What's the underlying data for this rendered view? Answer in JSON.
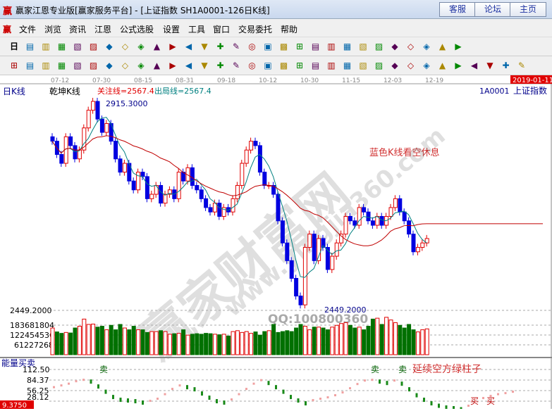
{
  "window": {
    "title": "赢家江恩专业版[赢家服务平台] - [上证指数  SH1A0001-126日K线]",
    "buttons": [
      "客服",
      "论坛",
      "主页"
    ]
  },
  "menu": [
    "文件",
    "浏览",
    "资讯",
    "江恩",
    "公式选股",
    "设置",
    "工具",
    "窗口",
    "交易委托",
    "帮助"
  ],
  "toolbar": {
    "period": "日",
    "row1_icons": [
      "period-dropdown",
      "multi-chart",
      "f10-info",
      "chart-type-3",
      "chart-type-9",
      "candle-dropdown",
      "gann",
      "color-k",
      "first",
      "last",
      "prev",
      "next",
      "left-arrow",
      "right-arrow",
      "zoom-in",
      "zoom-out",
      "expand",
      "shrink",
      "hand",
      "crosshair",
      "draw",
      "mark",
      "formula",
      "calendar",
      "calculator",
      "notes",
      "save",
      "network",
      "broker"
    ],
    "row2_icons": [
      "pen",
      "grid",
      "gold-grid-1",
      "gold-grid-2",
      "grid-f",
      "spiral",
      "pen-2",
      "circle",
      "grid-2",
      "grid-n2",
      "angle",
      "cross-circle",
      "star",
      "square-x",
      "lines",
      "gann-box",
      "box",
      "box-2",
      "arrow-h",
      "h-lines",
      "fan",
      "square-fan",
      "fan-2",
      "angle-2",
      "wave",
      "grid-red",
      "grid-blue",
      "lines-diag",
      "bars",
      "percent-red",
      "percent",
      "percent-lines",
      "coin"
    ],
    "percent": "%"
  },
  "chart": {
    "period_label": "日K线",
    "indicator_name": "乾坤K线",
    "focus_line": "关注线=2567.4",
    "exit_line": "出局线=2567.4",
    "symbol": "1A0001",
    "symbol_name": "上证指数",
    "current_date": "2019-01-11",
    "dates": [
      "07-12",
      "07-30",
      "08-15",
      "08-31",
      "09-18",
      "10-12",
      "10-30",
      "11-15",
      "12-03",
      "12-19"
    ],
    "high_label": "2915.3000",
    "low_label": "2449.2000",
    "annotation": "蓝色K线看空休息",
    "watermark": "赢家财富网",
    "watermark_url": "www.yingjia360.com",
    "qq": "QQ:100800360",
    "colors": {
      "up": "#e00000",
      "down": "#0000e0",
      "ma_short": "#008080",
      "ma_long": "#c00000",
      "vol_down": "#007000"
    }
  },
  "volume": {
    "ticks": [
      "2449.2000",
      "183681804",
      "122454536",
      "61227268"
    ]
  },
  "indicator": {
    "name": "能量买卖",
    "ticks": [
      "112.50",
      "84.37",
      "56.25",
      "28.12"
    ],
    "bottom_value": "9.3750",
    "sell_labels": [
      "卖",
      "卖",
      "卖"
    ],
    "buy_labels": [
      "买",
      "买"
    ],
    "annotation": "延续空方绿柱子"
  },
  "chart_data": {
    "type": "candlestick",
    "ylim": [
      2449.2,
      2915.3
    ],
    "close": [
      2830,
      2800,
      2780,
      2840,
      2820,
      2790,
      2810,
      2860,
      2900,
      2920,
      2880,
      2850,
      2870,
      2830,
      2790,
      2760,
      2780,
      2740,
      2720,
      2760,
      2750,
      2700,
      2710,
      2730,
      2690,
      2710,
      2720,
      2700,
      2760,
      2740,
      2770,
      2730,
      2720,
      2700,
      2680,
      2670,
      2690,
      2660,
      2680,
      2670,
      2700,
      2730,
      2780,
      2810,
      2830,
      2820,
      2760,
      2730,
      2730,
      2710,
      2650,
      2600,
      2560,
      2520,
      2480,
      2460,
      2590,
      2620,
      2560,
      2610,
      2590,
      2540,
      2570,
      2600,
      2620,
      2660,
      2650,
      2640,
      2680,
      2670,
      2650,
      2640,
      2660,
      2640,
      2660,
      2680,
      2700,
      2670,
      2650,
      2620,
      2580,
      2590,
      2600,
      2610
    ],
    "volume": [
      150,
      128,
      120,
      125,
      122,
      150,
      160,
      200,
      170,
      172,
      155,
      160,
      140,
      165,
      140,
      170,
      150,
      140,
      160,
      140,
      140,
      125,
      130,
      130,
      135,
      130,
      115,
      118,
      120,
      140,
      110,
      115,
      118,
      115,
      120,
      118,
      115,
      112,
      115,
      105,
      130,
      135,
      125,
      130,
      120,
      128,
      110,
      130,
      135,
      170,
      125,
      130,
      135,
      130,
      150,
      170,
      160,
      140,
      155,
      155,
      150,
      140,
      155,
      165,
      175,
      180,
      165,
      150,
      155,
      140,
      160,
      200,
      205,
      170,
      210,
      195,
      180,
      165,
      150,
      170,
      140,
      128,
      140,
      145
    ],
    "indicator": [
      65,
      70,
      75,
      82,
      86,
      84,
      70,
      55,
      40,
      32,
      30,
      28,
      24,
      26,
      32,
      45,
      60,
      70,
      68,
      62,
      50,
      38,
      28,
      24,
      30,
      45,
      60,
      75,
      85,
      80,
      68,
      55,
      40,
      30,
      22,
      28,
      32,
      36,
      42,
      50,
      62,
      74,
      84,
      86,
      84,
      80,
      84,
      78,
      62,
      45,
      32,
      22,
      15,
      10,
      8,
      5,
      12,
      25,
      34,
      40,
      45,
      48,
      52
    ]
  }
}
